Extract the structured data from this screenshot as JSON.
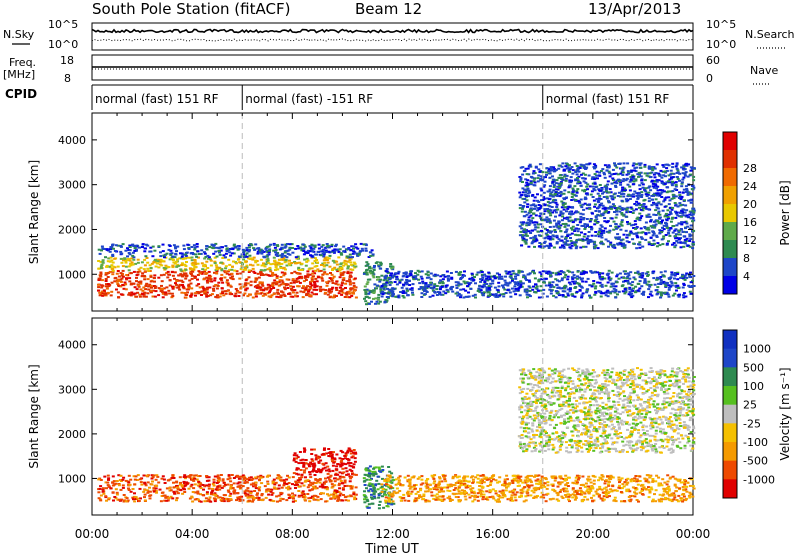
{
  "header": {
    "title": "South Pole Station (fitACF)",
    "beam": "Beam 12",
    "date": "13/Apr/2013"
  },
  "strip_labels": {
    "nsky": "N.Sky",
    "nsearch": "N.Search",
    "freq_l1": "Freq.",
    "freq_l2": "[MHz]",
    "nave": "Nave",
    "cpid": "CPID",
    "nsky_top": "10^5",
    "nsky_bot": "10^0",
    "freq_top": "18",
    "freq_bot": "8",
    "nave_top": "60",
    "nave_bot": "0"
  },
  "cpid_segments": [
    {
      "label": "normal (fast) 151 RF",
      "start_hour": 0
    },
    {
      "label": "normal (fast) -151 RF",
      "start_hour": 6
    },
    {
      "label": "normal (fast) 151 RF",
      "start_hour": 18
    }
  ],
  "colors": {
    "power": [
      "#0000e6",
      "#1e46c8",
      "#2e8a50",
      "#5faa4a",
      "#e8c800",
      "#f0a000",
      "#f06a00",
      "#e03000",
      "#e00000"
    ],
    "velocity": [
      "#e00000",
      "#ee4a00",
      "#f59a00",
      "#f5c000",
      "#bebebe",
      "#56c020",
      "#2e8a50",
      "#1e46c8",
      "#1030c0"
    ]
  },
  "chart_data": [
    {
      "type": "heatmap",
      "name": "power",
      "x_unit": "hours UT",
      "xlim": [
        0,
        24
      ],
      "ylim": [
        180,
        4600
      ],
      "ylabel": "Slant Range [km]",
      "y_ticks": [
        "1000",
        "2000",
        "3000",
        "4000"
      ],
      "colorbar_label": "Power [dB]",
      "colorbar_ticks": [
        "4",
        "8",
        "12",
        "16",
        "20",
        "24",
        "28"
      ],
      "regions": [
        {
          "x": [
            0.2,
            10.5
          ],
          "y": [
            500,
            1100
          ],
          "level": 7
        },
        {
          "x": [
            0.2,
            10.5
          ],
          "y": [
            1100,
            1400
          ],
          "level": 4
        },
        {
          "x": [
            0.2,
            11.3
          ],
          "y": [
            1400,
            1700
          ],
          "level": 1
        },
        {
          "x": [
            10.8,
            12.0
          ],
          "y": [
            350,
            1300
          ],
          "level": 2
        },
        {
          "x": [
            11.5,
            24.0
          ],
          "y": [
            500,
            1100
          ],
          "level": 1
        },
        {
          "x": [
            17.0,
            24.0
          ],
          "y": [
            1600,
            3500
          ],
          "level": 1
        }
      ]
    },
    {
      "type": "heatmap",
      "name": "velocity",
      "x_unit": "hours UT",
      "xlim": [
        0,
        24
      ],
      "ylim": [
        180,
        4600
      ],
      "ylabel": "Slant Range [km]",
      "y_ticks": [
        "1000",
        "2000",
        "3000",
        "4000"
      ],
      "x_ticks": [
        "00:00",
        "04:00",
        "08:00",
        "12:00",
        "16:00",
        "20:00",
        "00:00"
      ],
      "xlabel": "Time UT",
      "colorbar_label": "Velocity [m s⁻¹]",
      "colorbar_ticks": [
        "1000",
        "500",
        "100",
        "25",
        "-25",
        "-100",
        "-500",
        "-1000"
      ],
      "regions": [
        {
          "x": [
            0.2,
            10.5
          ],
          "y": [
            500,
            1100
          ],
          "level": 1
        },
        {
          "x": [
            8.0,
            10.5
          ],
          "y": [
            1100,
            1700
          ],
          "level": 0
        },
        {
          "x": [
            10.8,
            12.0
          ],
          "y": [
            350,
            1300
          ],
          "level": 6
        },
        {
          "x": [
            11.5,
            24.0
          ],
          "y": [
            500,
            1100
          ],
          "level": 2
        },
        {
          "x": [
            17.0,
            24.0
          ],
          "y": [
            1600,
            3500
          ],
          "level": 4
        }
      ]
    }
  ]
}
